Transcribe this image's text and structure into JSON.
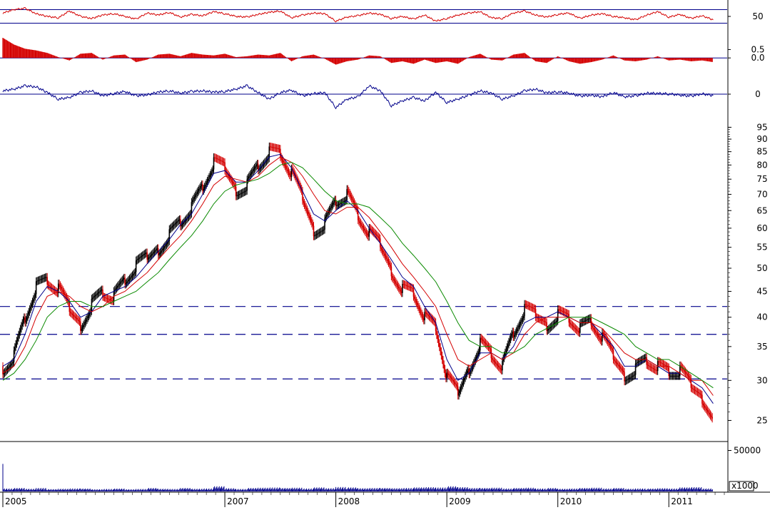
{
  "chart_data": [
    {
      "type": "line",
      "panel": "rsi-indicator",
      "ylim": [
        30,
        70
      ],
      "yticks": [
        {
          "value": 50,
          "label": "50"
        }
      ],
      "levels": [
        60,
        40
      ],
      "series": [
        {
          "color": "#d40000",
          "x": [
            2005.0,
            2005.1,
            2005.2,
            2005.3,
            2005.4,
            2005.5,
            2005.6,
            2005.7,
            2005.8,
            2005.9,
            2006.0,
            2006.1,
            2006.2,
            2006.3,
            2006.4,
            2006.5,
            2006.6,
            2006.7,
            2006.8,
            2006.9,
            2007.0,
            2007.1,
            2007.2,
            2007.3,
            2007.4,
            2007.5,
            2007.6,
            2007.7,
            2007.8,
            2007.9,
            2008.0,
            2008.1,
            2008.2,
            2008.3,
            2008.4,
            2008.5,
            2008.6,
            2008.7,
            2008.8,
            2008.9,
            2009.0,
            2009.1,
            2009.2,
            2009.3,
            2009.4,
            2009.5,
            2009.6,
            2009.7,
            2009.8,
            2009.9,
            2010.0,
            2010.1,
            2010.2,
            2010.3,
            2010.4,
            2010.5,
            2010.6,
            2010.7,
            2010.8,
            2010.9,
            2011.0,
            2011.1,
            2011.2,
            2011.3,
            2011.4
          ],
          "y": [
            55,
            60,
            62,
            54,
            50,
            48,
            58,
            50,
            47,
            52,
            54,
            50,
            46,
            55,
            52,
            56,
            49,
            53,
            51,
            57,
            54,
            50,
            49,
            53,
            56,
            58,
            48,
            52,
            55,
            54,
            43,
            49,
            51,
            55,
            53,
            47,
            50,
            46,
            52,
            43,
            47,
            52,
            55,
            57,
            48,
            47,
            55,
            58,
            52,
            49,
            53,
            55,
            47,
            52,
            54,
            50,
            48,
            45,
            52,
            57,
            49,
            53,
            47,
            51,
            45
          ]
        }
      ]
    },
    {
      "type": "bar",
      "panel": "momentum-histogram",
      "ylim": [
        -0.8,
        1.5
      ],
      "yticks": [
        {
          "value": 0.5,
          "label": "0.5"
        },
        {
          "value": 0.0,
          "label": "0.0"
        }
      ],
      "levels": [
        0.0
      ],
      "series": [
        {
          "color": "#d40000",
          "x": [
            2005.0,
            2005.1,
            2005.2,
            2005.3,
            2005.4,
            2005.5,
            2005.6,
            2005.7,
            2005.8,
            2005.9,
            2006.0,
            2006.1,
            2006.2,
            2006.3,
            2006.4,
            2006.5,
            2006.6,
            2006.7,
            2006.8,
            2006.9,
            2007.0,
            2007.1,
            2007.2,
            2007.3,
            2007.4,
            2007.5,
            2007.6,
            2007.7,
            2007.8,
            2007.9,
            2008.0,
            2008.1,
            2008.2,
            2008.3,
            2008.4,
            2008.5,
            2008.6,
            2008.7,
            2008.8,
            2008.9,
            2009.0,
            2009.1,
            2009.2,
            2009.3,
            2009.4,
            2009.5,
            2009.6,
            2009.7,
            2009.8,
            2009.9,
            2010.0,
            2010.1,
            2010.2,
            2010.3,
            2010.4,
            2010.5,
            2010.6,
            2010.7,
            2010.8,
            2010.9,
            2011.0,
            2011.1,
            2011.2,
            2011.3,
            2011.4
          ],
          "y": [
            1.2,
            0.8,
            0.55,
            0.45,
            0.3,
            0.05,
            -0.15,
            0.25,
            0.3,
            -0.1,
            0.15,
            0.2,
            -0.25,
            -0.1,
            0.2,
            0.25,
            0.1,
            0.3,
            0.2,
            0.15,
            0.25,
            0.05,
            0.1,
            0.2,
            0.15,
            0.3,
            -0.2,
            0.1,
            0.2,
            -0.05,
            -0.4,
            -0.2,
            -0.1,
            0.15,
            0.1,
            -0.3,
            -0.2,
            -0.35,
            -0.1,
            -0.3,
            -0.2,
            -0.35,
            0.05,
            0.25,
            -0.1,
            -0.15,
            0.2,
            0.3,
            -0.2,
            -0.3,
            0.1,
            -0.2,
            -0.35,
            -0.25,
            -0.1,
            0.15,
            -0.15,
            -0.2,
            -0.1,
            0.1,
            -0.15,
            -0.1,
            -0.2,
            -0.15,
            -0.25
          ]
        }
      ]
    },
    {
      "type": "line",
      "panel": "oscillator",
      "ylim": [
        -6,
        6
      ],
      "yticks": [
        {
          "value": 0,
          "label": "0"
        }
      ],
      "levels": [
        0
      ],
      "series": [
        {
          "color": "#00008b",
          "x": [
            2005.0,
            2005.1,
            2005.2,
            2005.3,
            2005.4,
            2005.5,
            2005.6,
            2005.7,
            2005.8,
            2005.9,
            2006.0,
            2006.1,
            2006.2,
            2006.3,
            2006.4,
            2006.5,
            2006.6,
            2006.7,
            2006.8,
            2006.9,
            2007.0,
            2007.1,
            2007.2,
            2007.3,
            2007.4,
            2007.5,
            2007.6,
            2007.7,
            2007.8,
            2007.9,
            2008.0,
            2008.1,
            2008.2,
            2008.3,
            2008.4,
            2008.5,
            2008.6,
            2008.7,
            2008.8,
            2008.9,
            2009.0,
            2009.1,
            2009.2,
            2009.3,
            2009.4,
            2009.5,
            2009.6,
            2009.7,
            2009.8,
            2009.9,
            2010.0,
            2010.1,
            2010.2,
            2010.3,
            2010.4,
            2010.5,
            2010.6,
            2010.7,
            2010.8,
            2010.9,
            2011.0,
            2011.1,
            2011.2,
            2011.3,
            2011.4
          ],
          "y": [
            1.0,
            1.5,
            2.5,
            2.2,
            0.5,
            -1.5,
            -1.0,
            0.5,
            1.0,
            -0.5,
            0.2,
            0.8,
            -0.5,
            -0.2,
            0.6,
            1.0,
            0.3,
            0.8,
            1.0,
            0.6,
            0.8,
            1.5,
            2.5,
            0.5,
            -1.5,
            0.5,
            1.2,
            -0.5,
            0.2,
            0.4,
            -4.0,
            -1.5,
            -0.8,
            2.5,
            1.0,
            -3.5,
            -2.0,
            -1.0,
            -2.0,
            0.5,
            -2.5,
            -1.5,
            -0.3,
            1.0,
            0.3,
            -1.5,
            -0.5,
            1.0,
            1.5,
            0.4,
            0.7,
            0.3,
            -0.6,
            -0.3,
            -0.8,
            0.5,
            -0.8,
            -0.5,
            0.3,
            0.2,
            0.1,
            -0.3,
            -0.6,
            0.1,
            -0.4
          ]
        }
      ]
    },
    {
      "type": "candlestick",
      "panel": "price",
      "ylim": [
        24,
        97
      ],
      "yscale": "log",
      "grid": false,
      "yticks": [
        25,
        30,
        35,
        40,
        45,
        50,
        55,
        60,
        65,
        70,
        75,
        80,
        85,
        90,
        95
      ],
      "xticks": [
        {
          "value": 2005.0,
          "label": "2005"
        },
        {
          "value": 2007.0,
          "label": "2007"
        },
        {
          "value": 2008.0,
          "label": "2008"
        },
        {
          "value": 2009.0,
          "label": "2009"
        },
        {
          "value": 2010.0,
          "label": "2010"
        },
        {
          "value": 2011.0,
          "label": "2011"
        }
      ],
      "xlim": [
        2005.0,
        2011.5
      ],
      "horizontal_levels": [
        {
          "value": 42,
          "color": "#00008b",
          "style": "dashed"
        },
        {
          "value": 37,
          "color": "#00008b",
          "style": "dashed"
        },
        {
          "value": 30.2,
          "color": "#00008b",
          "style": "dashed"
        }
      ],
      "candle_colors": {
        "up": "#000000",
        "down": "#d40000"
      },
      "x": [
        2005.0,
        2005.1,
        2005.2,
        2005.3,
        2005.4,
        2005.5,
        2005.6,
        2005.7,
        2005.8,
        2005.9,
        2006.0,
        2006.1,
        2006.2,
        2006.3,
        2006.4,
        2006.5,
        2006.6,
        2006.7,
        2006.8,
        2006.9,
        2007.0,
        2007.1,
        2007.2,
        2007.3,
        2007.4,
        2007.5,
        2007.6,
        2007.7,
        2007.8,
        2007.9,
        2008.0,
        2008.1,
        2008.2,
        2008.3,
        2008.4,
        2008.5,
        2008.6,
        2008.7,
        2008.8,
        2008.9,
        2009.0,
        2009.1,
        2009.2,
        2009.3,
        2009.4,
        2009.5,
        2009.6,
        2009.7,
        2009.8,
        2009.9,
        2010.0,
        2010.1,
        2010.2,
        2010.3,
        2010.4,
        2010.5,
        2010.6,
        2010.7,
        2010.8,
        2010.9,
        2011.0,
        2011.1,
        2011.2,
        2011.3,
        2011.4
      ],
      "close": [
        32,
        34,
        40,
        46,
        47,
        45,
        41,
        39,
        43,
        45,
        44,
        47,
        50,
        52,
        55,
        59,
        62,
        66,
        72,
        80,
        78,
        72,
        74,
        80,
        85,
        84,
        76,
        68,
        60,
        62,
        68,
        70,
        63,
        58,
        55,
        50,
        46,
        45,
        40,
        38,
        30,
        28,
        32,
        36,
        34,
        32,
        37,
        41,
        40,
        39,
        41,
        40,
        38,
        39,
        36,
        33,
        31,
        32,
        33,
        32,
        31,
        31,
        29,
        28,
        26
      ],
      "series": [
        {
          "name": "",
          "color": "#00008b",
          "y": [
            32,
            33,
            37,
            43,
            46,
            45,
            43,
            40,
            41,
            44,
            45,
            46,
            48,
            51,
            54,
            57,
            61,
            64,
            70,
            77,
            78,
            74,
            74,
            78,
            83,
            84,
            79,
            71,
            64,
            62,
            65,
            68,
            65,
            60,
            56,
            52,
            48,
            46,
            42,
            39,
            33,
            30,
            31,
            34,
            34,
            33,
            35,
            39,
            40,
            40,
            41,
            40,
            39,
            39,
            37,
            35,
            32,
            32,
            33,
            32,
            31,
            31,
            30,
            29,
            27
          ]
        },
        {
          "name": "",
          "color": "#d40000",
          "y": [
            31,
            32,
            35,
            40,
            44,
            45,
            44,
            42,
            41,
            42,
            44,
            45,
            47,
            49,
            52,
            55,
            58,
            62,
            67,
            73,
            76,
            75,
            74,
            76,
            80,
            83,
            81,
            76,
            70,
            65,
            64,
            66,
            66,
            63,
            59,
            55,
            51,
            48,
            45,
            42,
            37,
            33,
            32,
            33,
            34,
            33,
            34,
            37,
            39,
            40,
            40,
            40,
            39,
            39,
            38,
            36,
            34,
            33,
            33,
            32,
            32,
            31,
            30,
            30,
            28
          ]
        },
        {
          "name": "",
          "color": "#0a8a00",
          "y": [
            30,
            31,
            33,
            36,
            40,
            42,
            43,
            43,
            42,
            42,
            43,
            44,
            45,
            47,
            49,
            52,
            55,
            58,
            62,
            67,
            71,
            73,
            74,
            75,
            77,
            80,
            81,
            79,
            75,
            71,
            68,
            67,
            67,
            66,
            63,
            60,
            56,
            53,
            50,
            47,
            43,
            39,
            36,
            35,
            35,
            34,
            34,
            35,
            37,
            38,
            39,
            40,
            40,
            40,
            39,
            38,
            37,
            35,
            34,
            33,
            33,
            32,
            31,
            30,
            29
          ]
        }
      ]
    },
    {
      "type": "bar",
      "panel": "volume",
      "ylim": [
        0,
        60000
      ],
      "yticks": [
        {
          "value": 50000,
          "label": "50000"
        }
      ],
      "unit_label": "x1000",
      "series": [
        {
          "color": "#00008b",
          "x": [
            2005.0,
            2005.1,
            2005.2,
            2005.3,
            2005.4,
            2005.5,
            2005.6,
            2005.7,
            2005.8,
            2005.9,
            2006.0,
            2006.1,
            2006.2,
            2006.3,
            2006.4,
            2006.5,
            2006.6,
            2006.7,
            2006.8,
            2006.9,
            2007.0,
            2007.1,
            2007.2,
            2007.3,
            2007.4,
            2007.5,
            2007.6,
            2007.7,
            2007.8,
            2007.9,
            2008.0,
            2008.1,
            2008.2,
            2008.3,
            2008.4,
            2008.5,
            2008.6,
            2008.7,
            2008.8,
            2008.9,
            2009.0,
            2009.1,
            2009.2,
            2009.3,
            2009.4,
            2009.5,
            2009.6,
            2009.7,
            2009.8,
            2009.9,
            2010.0,
            2010.1,
            2010.2,
            2010.3,
            2010.4,
            2010.5,
            2010.6,
            2010.7,
            2010.8,
            2010.9,
            2011.0,
            2011.1,
            2011.2,
            2011.3,
            2011.4
          ],
          "y": [
            56000,
            3000,
            2500,
            3500,
            2000,
            2500,
            3000,
            2500,
            2000,
            2500,
            2500,
            2000,
            2500,
            3000,
            2500,
            2500,
            3000,
            2500,
            3000,
            4500,
            3000,
            2500,
            3000,
            3500,
            4000,
            3000,
            3500,
            3000,
            3500,
            3000,
            4500,
            3500,
            3000,
            3500,
            3000,
            3000,
            3500,
            3500,
            4000,
            4000,
            4500,
            4000,
            3500,
            3000,
            3500,
            3000,
            3000,
            3500,
            3000,
            3000,
            2500,
            3000,
            3000,
            3500,
            3000,
            3000,
            2500,
            3000,
            2500,
            3000,
            3000,
            3500,
            4000,
            3000,
            3000
          ]
        }
      ]
    }
  ]
}
